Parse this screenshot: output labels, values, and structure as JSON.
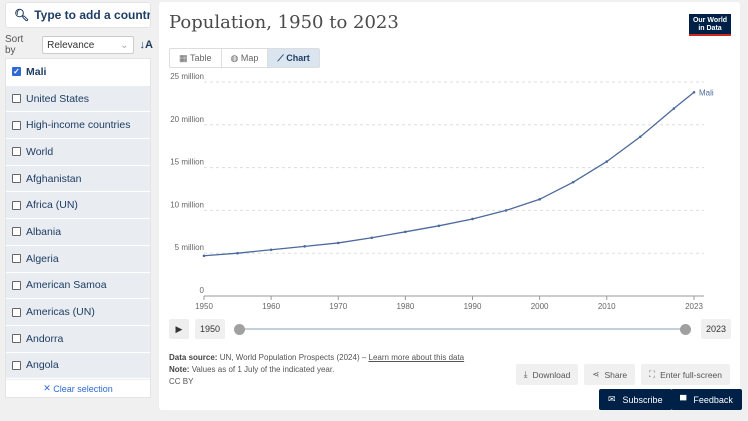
{
  "sidebar": {
    "search_placeholder": "Type to add a country or region",
    "sort_label": "Sort by",
    "sort_value": "Relevance",
    "items": [
      {
        "label": "Mali",
        "checked": true
      },
      {
        "label": "United States"
      },
      {
        "label": "High-income countries"
      },
      {
        "label": "World"
      },
      {
        "label": "Afghanistan"
      },
      {
        "label": "Africa (UN)"
      },
      {
        "label": "Albania"
      },
      {
        "label": "Algeria"
      },
      {
        "label": "American Samoa"
      },
      {
        "label": "Americas (UN)"
      },
      {
        "label": "Andorra"
      },
      {
        "label": "Angola"
      }
    ],
    "clear_label": "Clear selection"
  },
  "header": {
    "title": "Population, 1950 to 2023",
    "logo": "Our World in Data"
  },
  "tabs": [
    {
      "label": "Table"
    },
    {
      "label": "Map"
    },
    {
      "label": "Chart"
    }
  ],
  "timeline": {
    "play": "▶",
    "start": "1950",
    "end": "2023"
  },
  "footer": {
    "source_label": "Data source:",
    "source": "UN, World Population Prospects (2024) – ",
    "source_link": "Learn more about this data",
    "note_label": "Note:",
    "note": "Values as of 1 July of the indicated year.",
    "license": "CC BY"
  },
  "buttons": {
    "download": "Download",
    "share": "Share",
    "fullscreen": "Enter full-screen",
    "subscribe": "Subscribe",
    "feedback": "Feedback"
  },
  "chart_data": {
    "type": "line",
    "title": "Population, 1950 to 2023",
    "ylim": [
      0,
      25000000
    ],
    "xlim": [
      1950,
      2023
    ],
    "yticks": [
      {
        "v": 0,
        "label": "0"
      },
      {
        "v": 5000000,
        "label": "5 million"
      },
      {
        "v": 10000000,
        "label": "10 million"
      },
      {
        "v": 15000000,
        "label": "15 million"
      },
      {
        "v": 20000000,
        "label": "20 million"
      },
      {
        "v": 25000000,
        "label": "25 million"
      }
    ],
    "xticks": [
      "1950",
      "1960",
      "1970",
      "1980",
      "1990",
      "2000",
      "2010",
      "2023"
    ],
    "series": [
      {
        "name": "Mali",
        "color": "#4c6a9c",
        "x": [
          1950,
          1955,
          1960,
          1965,
          1970,
          1975,
          1980,
          1985,
          1990,
          1995,
          2000,
          2005,
          2010,
          2015,
          2020,
          2023
        ],
        "y": [
          4700000,
          5000000,
          5400000,
          5800000,
          6200000,
          6800000,
          7500000,
          8200000,
          9000000,
          10000000,
          11300000,
          13300000,
          15700000,
          18600000,
          21900000,
          23800000
        ]
      }
    ]
  }
}
